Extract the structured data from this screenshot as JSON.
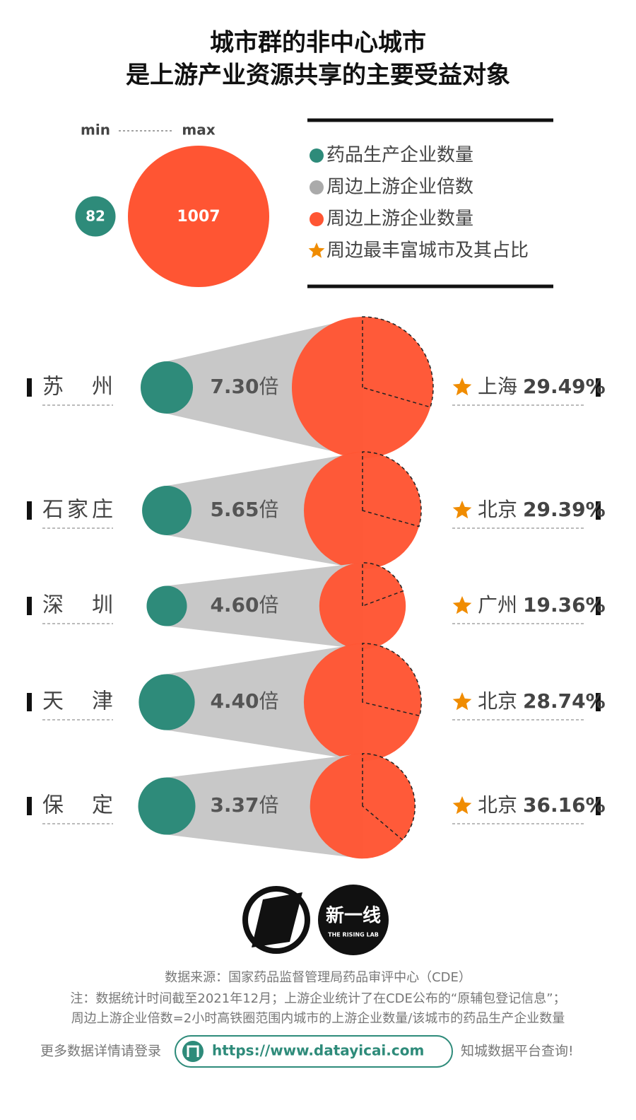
{
  "chart_data": {
    "type": "bubble",
    "title": [
      "城市群的非中心城市",
      "是上游产业资源共享的主要受益对象"
    ],
    "size_legend": {
      "min_label": "min",
      "max_label": "max",
      "min": 82,
      "max": 1007
    },
    "categories": [
      "苏州",
      "石家庄",
      "深圳",
      "天津",
      "保定"
    ],
    "unit": "倍",
    "series": [
      {
        "name": "药品生产企业数量",
        "color": "#2e8b7a",
        "values": [
          138,
          123,
          82,
          158,
          165
        ]
      },
      {
        "name": "周边上游企业倍数",
        "color": "#aaaaaa",
        "values": [
          7.3,
          5.65,
          4.6,
          4.4,
          3.37
        ],
        "value_labels": [
          "7.30",
          "5.65",
          "4.60",
          "4.40",
          "3.37"
        ]
      },
      {
        "name": "周边上游企业数量",
        "color": "#ff5533",
        "values": [
          1007,
          694,
          377,
          695,
          556
        ]
      },
      {
        "name": "周边最丰富城市及其占比",
        "color": "#f08c00",
        "cities": [
          "上海",
          "北京",
          "广州",
          "北京",
          "北京"
        ],
        "values": [
          29.49,
          29.39,
          19.36,
          28.74,
          36.16
        ],
        "value_labels": [
          "29.49%",
          "29.39%",
          "19.36%",
          "28.74%",
          "36.16%"
        ]
      }
    ]
  },
  "footer": {
    "logo_text": "新一线",
    "logo_subtitle": "THE RISING LAB",
    "source": "数据来源：国家药品监督管理局药品审评中心（CDE）",
    "note": "注：数据统计时间截至2021年12月；上游企业统计了在CDE公布的“原辅包登记信息”；",
    "formula": "周边上游企业倍数=2小时高铁圈范围内城市的上游企业数量/该城市的药品生产企业数量",
    "login_prefix": "更多数据详情请登录",
    "url": "https://www.datayicai.com",
    "login_suffix": "知城数据平台查询!"
  }
}
